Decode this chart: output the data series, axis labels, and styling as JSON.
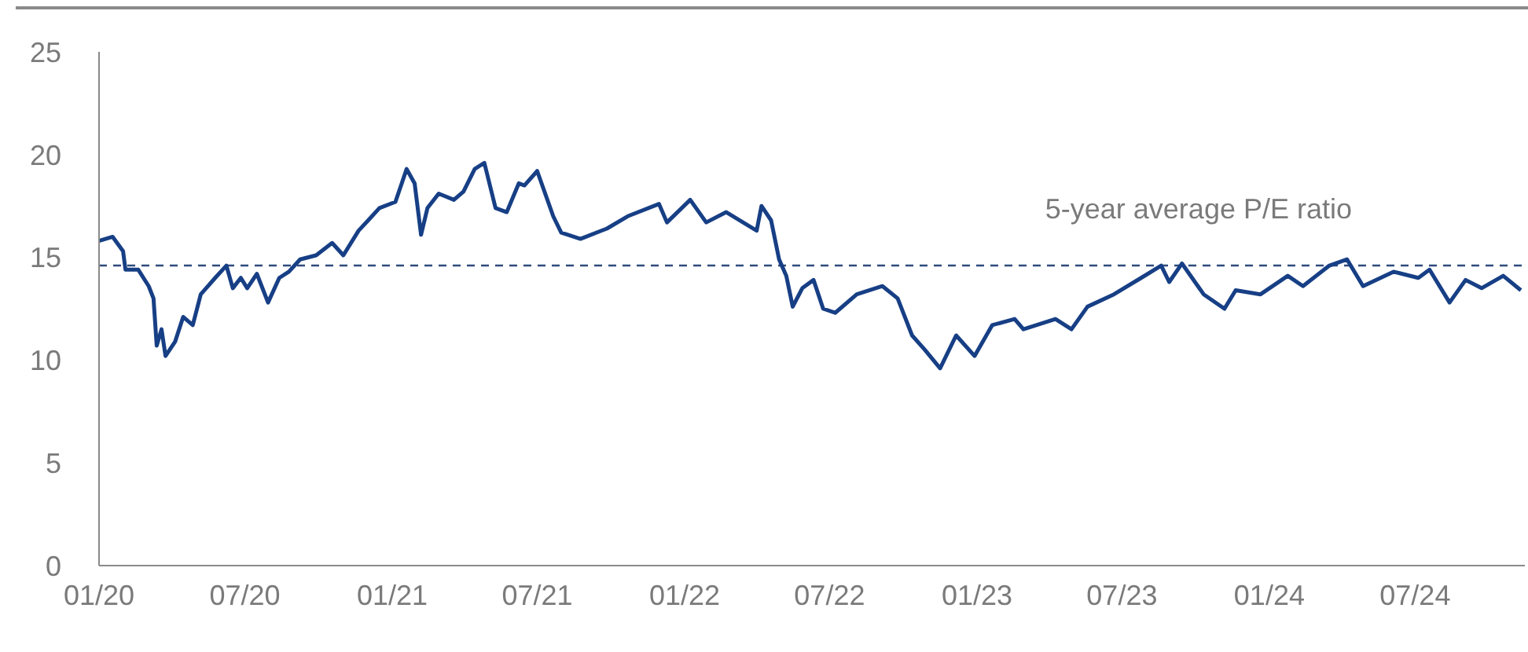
{
  "chart_data": {
    "type": "line",
    "x": [
      "2020-01-01",
      "2020-01-18",
      "2020-01-31",
      "2020-02-03",
      "2020-02-19",
      "2020-03-03",
      "2020-03-09",
      "2020-03-13",
      "2020-03-19",
      "2020-03-24",
      "2020-04-05",
      "2020-04-15",
      "2020-04-27",
      "2020-05-07",
      "2020-05-25",
      "2020-06-08",
      "2020-06-16",
      "2020-06-26",
      "2020-07-04",
      "2020-07-16",
      "2020-07-30",
      "2020-08-13",
      "2020-08-25",
      "2020-09-08",
      "2020-09-28",
      "2020-10-18",
      "2020-11-01",
      "2020-11-20",
      "2020-12-02",
      "2020-12-16",
      "2021-01-05",
      "2021-01-19",
      "2021-01-29",
      "2021-02-06",
      "2021-02-14",
      "2021-02-28",
      "2021-03-19",
      "2021-03-31",
      "2021-04-14",
      "2021-04-26",
      "2021-05-10",
      "2021-05-24",
      "2021-06-08",
      "2021-06-15",
      "2021-07-01",
      "2021-07-21",
      "2021-07-31",
      "2021-08-24",
      "2021-09-26",
      "2021-10-22",
      "2021-11-30",
      "2021-12-10",
      "2022-01-08",
      "2022-01-28",
      "2022-02-22",
      "2022-04-01",
      "2022-04-07",
      "2022-04-19",
      "2022-04-29",
      "2022-05-08",
      "2022-05-16",
      "2022-05-28",
      "2022-06-11",
      "2022-06-23",
      "2022-07-08",
      "2022-08-04",
      "2022-09-05",
      "2022-09-24",
      "2022-10-12",
      "2022-10-28",
      "2022-11-16",
      "2022-12-06",
      "2022-12-29",
      "2023-01-20",
      "2023-02-17",
      "2023-02-28",
      "2023-04-09",
      "2023-04-29",
      "2023-05-19",
      "2023-06-21",
      "2023-07-25",
      "2023-08-19",
      "2023-08-29",
      "2023-09-14",
      "2023-10-11",
      "2023-11-06",
      "2023-11-20",
      "2023-12-21",
      "2024-01-24",
      "2024-02-12",
      "2024-03-16",
      "2024-04-07",
      "2024-04-27",
      "2024-06-04",
      "2024-07-05",
      "2024-07-19",
      "2024-08-13",
      "2024-09-02",
      "2024-09-22",
      "2024-10-19",
      "2024-11-10"
    ],
    "series": [
      {
        "color": "#173f85",
        "values": [
          15.8,
          16.0,
          15.3,
          14.4,
          14.4,
          13.6,
          13.0,
          10.7,
          11.5,
          10.2,
          10.9,
          12.1,
          11.7,
          13.2,
          14.0,
          14.6,
          13.5,
          14.0,
          13.5,
          14.2,
          12.8,
          14.0,
          14.3,
          14.9,
          15.1,
          15.7,
          15.1,
          16.3,
          16.8,
          17.4,
          17.7,
          19.3,
          18.6,
          16.1,
          17.4,
          18.1,
          17.8,
          18.2,
          19.3,
          19.6,
          17.4,
          17.2,
          18.6,
          18.5,
          19.2,
          17.0,
          16.2,
          15.9,
          16.4,
          17.0,
          17.6,
          16.7,
          17.8,
          16.7,
          17.2,
          16.3,
          17.5,
          16.8,
          14.9,
          14.1,
          12.6,
          13.5,
          13.9,
          12.5,
          12.3,
          13.2,
          13.6,
          13.0,
          11.2,
          10.5,
          9.6,
          11.2,
          10.2,
          11.7,
          12.0,
          11.5,
          12.0,
          11.5,
          12.6,
          13.2,
          14.0,
          14.6,
          13.8,
          14.7,
          13.2,
          12.5,
          13.4,
          13.2,
          14.1,
          13.6,
          14.6,
          14.9,
          13.6,
          14.3,
          14.0,
          14.4,
          12.8,
          13.9,
          13.5,
          14.1,
          13.4
        ]
      }
    ],
    "xlim": [
      "2020-01-01",
      "2024-11-15"
    ],
    "xticks": [
      {
        "value": "2020-01-01",
        "label": "01/20"
      },
      {
        "value": "2020-07-01",
        "label": "07/20"
      },
      {
        "value": "2021-01-01",
        "label": "01/21"
      },
      {
        "value": "2021-07-01",
        "label": "07/21"
      },
      {
        "value": "2022-01-01",
        "label": "01/22"
      },
      {
        "value": "2022-07-01",
        "label": "07/22"
      },
      {
        "value": "2023-01-01",
        "label": "01/23"
      },
      {
        "value": "2023-07-01",
        "label": "07/23"
      },
      {
        "value": "2024-01-01",
        "label": "01/24"
      },
      {
        "value": "2024-07-01",
        "label": "07/24"
      }
    ],
    "ylim": [
      0,
      25
    ],
    "yticks": [
      0,
      5,
      10,
      15,
      20,
      25
    ],
    "ref_lines": [
      {
        "axis": "y",
        "value": 14.6,
        "label": "5-year average P/E ratio",
        "color": "#2f4b7c",
        "line_style": "dashed"
      }
    ],
    "grid": false,
    "legend": false,
    "marker": "none",
    "line_style": "solid"
  }
}
